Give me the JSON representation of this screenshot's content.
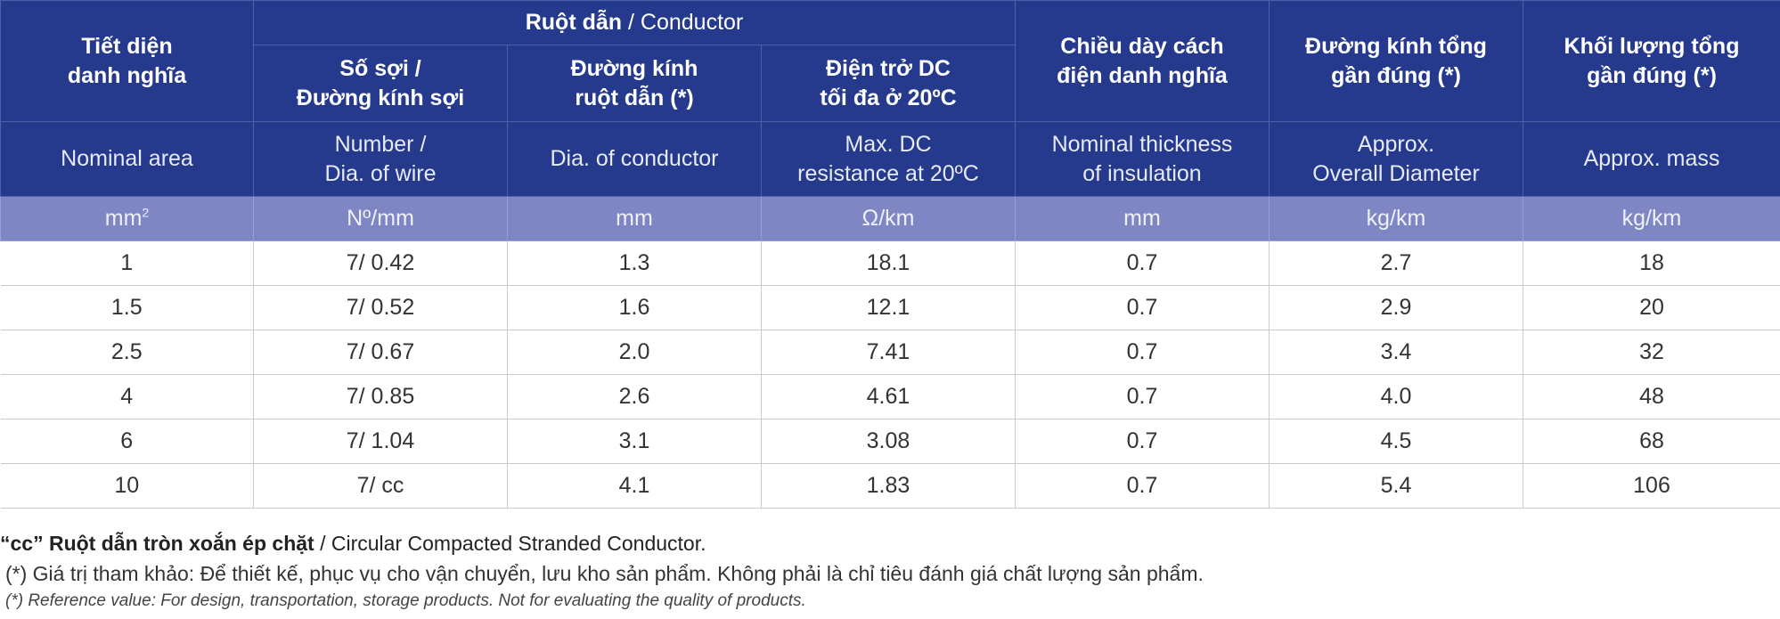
{
  "header": {
    "nominal_area_vi": "Tiết diện\ndanh nghĩa",
    "conductor_group_vi": "Ruột dẫn",
    "conductor_group_en": "/ Conductor",
    "number_vi": "Số sợi /\nĐường kính sợi",
    "dia_conductor_vi": "Đường kính\nruột dẫn (*)",
    "resistance_vi": "Điện trở DC\ntối đa ở 20ºC",
    "insulation_vi": "Chiều dày cách\nđiện danh nghĩa",
    "overall_dia_vi": "Đường kính tổng\ngần đúng (*)",
    "mass_vi": "Khối lượng tổng\ngần đúng (*)",
    "nominal_area_en": "Nominal area",
    "number_en": "Number /\nDia. of wire",
    "dia_conductor_en": "Dia. of conductor",
    "resistance_en": "Max. DC\nresistance at 20ºC",
    "insulation_en": "Nominal thickness\nof insulation",
    "overall_dia_en": "Approx.\nOverall Diameter",
    "mass_en": "Approx. mass"
  },
  "units": {
    "area": "mm",
    "area_sup": "2",
    "number": "Nº/mm",
    "dia": "mm",
    "resistance": "Ω/km",
    "insulation": "mm",
    "overall": "kg/km",
    "mass": "kg/km"
  },
  "rows": [
    [
      "1",
      "7/ 0.42",
      "1.3",
      "18.1",
      "0.7",
      "2.7",
      "18"
    ],
    [
      "1.5",
      "7/ 0.52",
      "1.6",
      "12.1",
      "0.7",
      "2.9",
      "20"
    ],
    [
      "2.5",
      "7/ 0.67",
      "2.0",
      "7.41",
      "0.7",
      "3.4",
      "32"
    ],
    [
      "4",
      "7/ 0.85",
      "2.6",
      "4.61",
      "0.7",
      "4.0",
      "48"
    ],
    [
      "6",
      "7/ 1.04",
      "3.1",
      "3.08",
      "0.7",
      "4.5",
      "68"
    ],
    [
      "10",
      "7/ cc",
      "4.1",
      "1.83",
      "0.7",
      "5.4",
      "106"
    ]
  ],
  "notes": {
    "cc_bold": "“cc” Ruột dẫn tròn xoắn ép chặt",
    "cc_rest": " / Circular Compacted Stranded Conductor.",
    "ref_vi": "(*) Giá trị tham khảo: Để thiết kế, phục vụ cho vận chuyển, lưu kho sản phẩm. Không phải là chỉ tiêu đánh giá chất lượng sản phẩm.",
    "ref_en": "(*) Reference value: For design, transportation, storage products. Not for evaluating the quality of products."
  },
  "colors": {
    "header_blue": "#253a8d",
    "unit_row": "#7f86c4",
    "grid": "#c8cad0"
  }
}
